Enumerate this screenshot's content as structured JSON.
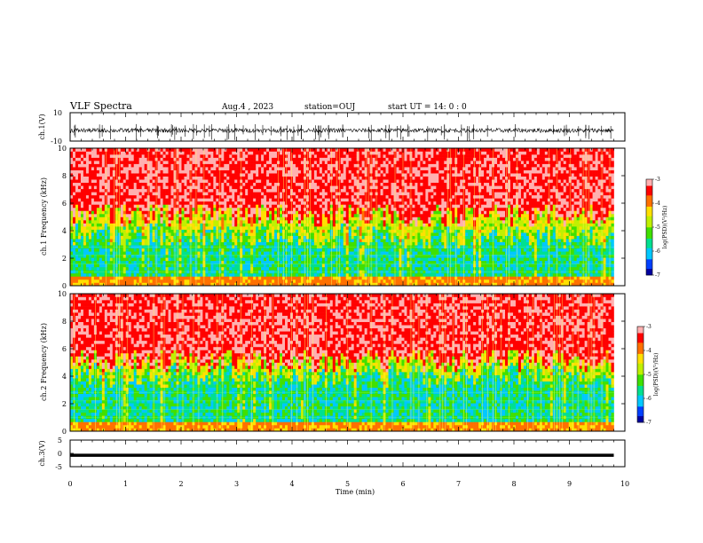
{
  "header": {
    "title": "VLF Spectra",
    "date": "Aug.4 , 2023",
    "station": "station=OUJ",
    "start": "start UT = 14: 0 : 0"
  },
  "colors": {
    "spectrum": [
      "#0000a0",
      "#0040ff",
      "#00c8ff",
      "#00e090",
      "#40e000",
      "#c0f000",
      "#ffe000",
      "#ff7000",
      "#ff0000",
      "#ffb0b0"
    ],
    "trace": "#000000"
  },
  "chart_data": [
    {
      "type": "line",
      "name": "ch1-waveform",
      "ylabel": "ch.1(V)",
      "ylim": [
        -10,
        10
      ],
      "yticks": [
        "10",
        "-10"
      ],
      "xlim": [
        0,
        10
      ],
      "x_extent": 9.8,
      "baseline": -2.5,
      "noise_band": 1.5,
      "spike_extent": [
        -10,
        2
      ]
    },
    {
      "type": "heatmap",
      "name": "ch1-spectrogram",
      "ylabel": "ch.1 Frequency (kHz)",
      "ylim": [
        0,
        10
      ],
      "yticks": [
        "0",
        "2",
        "4",
        "6",
        "8",
        "10"
      ],
      "xlim": [
        0,
        10
      ],
      "x_extent": 9.8,
      "transition_khz": [
        3.5,
        5.0
      ],
      "colorbar": {
        "label": "log(PSD)(V²/Hz)",
        "range": [
          -7,
          -3
        ],
        "ticks": [
          "-3",
          "-4",
          "-5",
          "-6",
          "-7"
        ]
      }
    },
    {
      "type": "heatmap",
      "name": "ch2-spectrogram",
      "ylabel": "ch.2 Frequency (kHz)",
      "ylim": [
        0,
        10
      ],
      "yticks": [
        "0",
        "2",
        "4",
        "6",
        "8",
        "10"
      ],
      "xlim": [
        0,
        10
      ],
      "x_extent": 9.8,
      "transition_khz": [
        4.0,
        5.0
      ],
      "colorbar": {
        "label": "log(PSD)(V²/Hz)",
        "range": [
          -7,
          -3
        ],
        "ticks": [
          "-3",
          "-4",
          "-5",
          "-6",
          "-7"
        ]
      }
    },
    {
      "type": "line",
      "name": "ch3-waveform",
      "ylabel": "ch.3(V)",
      "ylim": [
        -5,
        5
      ],
      "yticks": [
        "5",
        "0",
        "-5"
      ],
      "xlim": [
        0,
        10
      ],
      "x_extent": 9.8,
      "value": -0.7
    }
  ],
  "xaxis": {
    "label": "Time (min)",
    "ticks": [
      "0",
      "1",
      "2",
      "3",
      "4",
      "5",
      "6",
      "7",
      "8",
      "9",
      "10"
    ]
  }
}
